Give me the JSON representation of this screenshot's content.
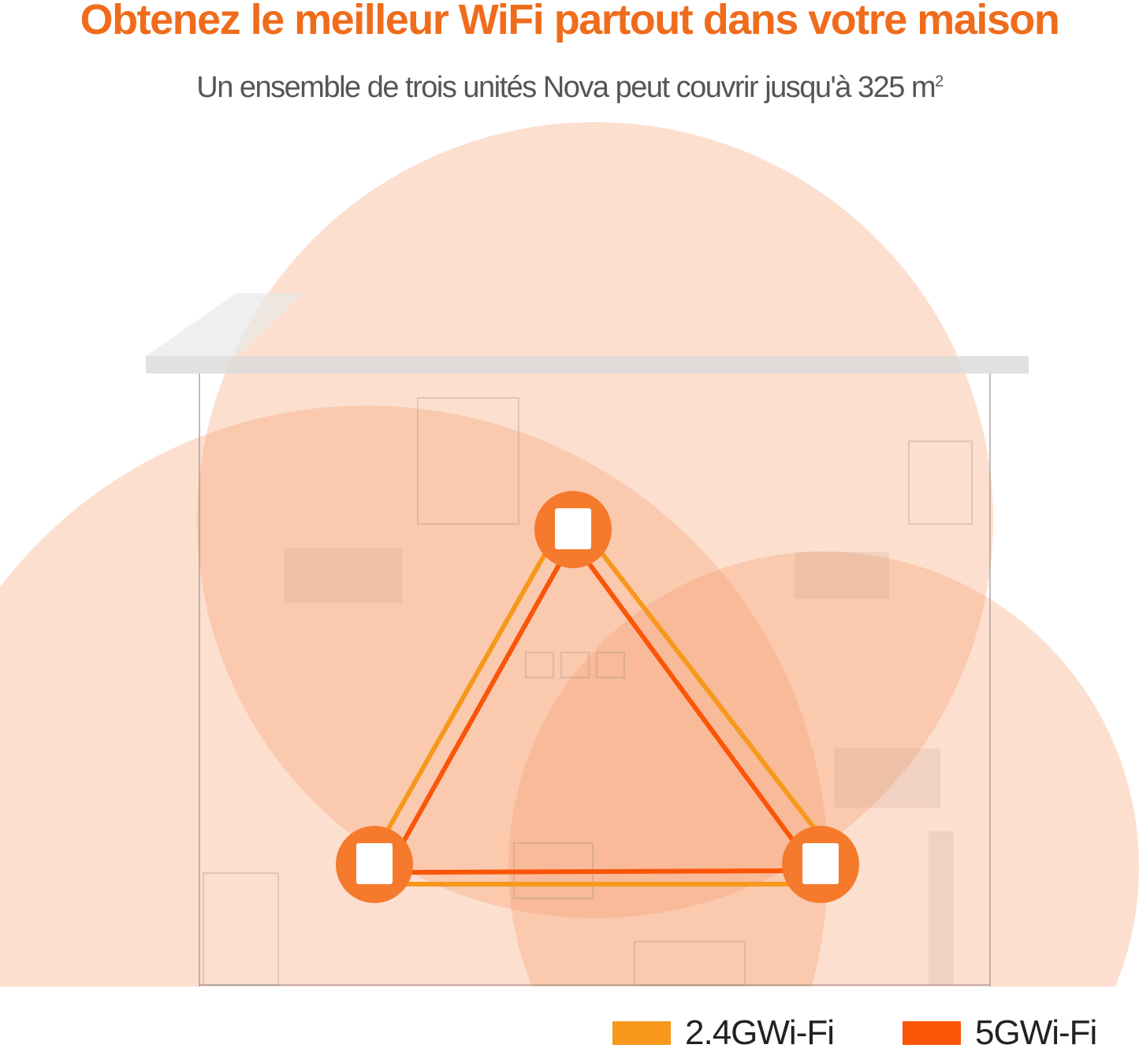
{
  "header": {
    "title": "Obtenez le meilleur WiFi partout dans votre maison",
    "subtitle": "Un ensemble de trois unités Nova peut couvrir jusqu'à 325 m",
    "subtitle_superscript": "2"
  },
  "colors": {
    "accent": "#ef6c1c",
    "band_24g": "#f7981d",
    "band_5g": "#fb5508",
    "coverage": "#fcd9c4",
    "node": "#f57a2c"
  },
  "diagram": {
    "nodes": [
      "mesh-node-top",
      "mesh-node-left",
      "mesh-node-right"
    ]
  },
  "legend": [
    {
      "label": "2.4GWi-Fi",
      "color": "#f7981d"
    },
    {
      "label": "5GWi-Fi",
      "color": "#fb5508"
    }
  ]
}
